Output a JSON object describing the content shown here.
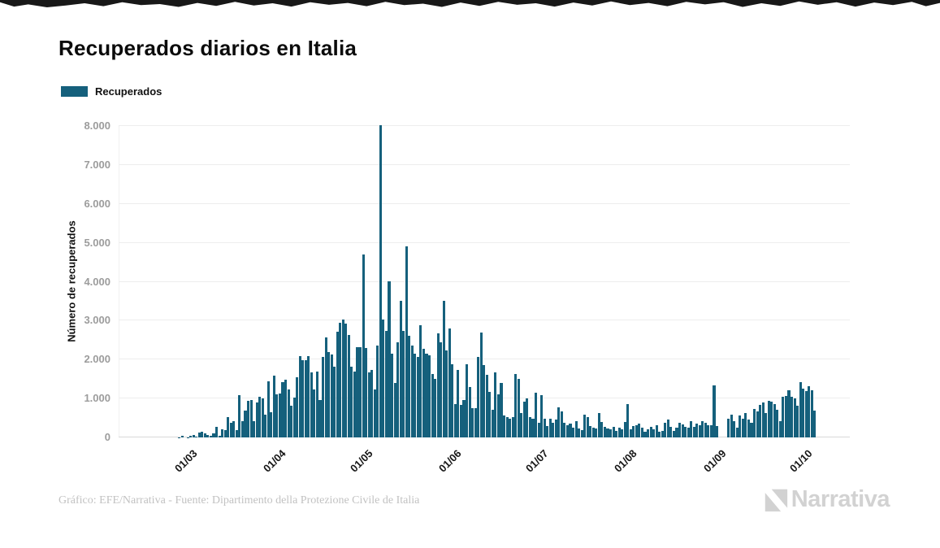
{
  "header": {
    "title": "Recuperados diarios en Italia"
  },
  "legend": {
    "label": "Recuperados",
    "swatch_color": "#15607c"
  },
  "footer": {
    "credit": "Gráfico: EFE/Narrativa - Fuente: Dipartimento della Protezione Civile de Italia",
    "brand": "Narrativa"
  },
  "colors": {
    "bar": "#15607c",
    "grid": "#ededed",
    "axis_labels": "#9c9c9c",
    "brand_gray": "#d2d2d2"
  },
  "chart_data": {
    "type": "bar",
    "title": "Recuperados diarios en Italia",
    "series_name": "Recuperados",
    "xlabel": "",
    "ylabel": "Número de recuperados",
    "ylim": [
      0,
      8000
    ],
    "grid": true,
    "legend_position": "top-left",
    "start_date": "26/02",
    "x_is_daily": true,
    "ytick_values": [
      0,
      1000,
      2000,
      3000,
      4000,
      5000,
      6000,
      7000,
      8000
    ],
    "ytick_labels": [
      "0",
      "1.000",
      "2.000",
      "3.000",
      "4.000",
      "5.000",
      "6.000",
      "7.000",
      "8.000"
    ],
    "xticks": [
      {
        "label": "01/03",
        "day_index": 4
      },
      {
        "label": "01/04",
        "day_index": 35
      },
      {
        "label": "01/05",
        "day_index": 65
      },
      {
        "label": "01/06",
        "day_index": 96
      },
      {
        "label": "01/07",
        "day_index": 126
      },
      {
        "label": "01/08",
        "day_index": 157
      },
      {
        "label": "01/09",
        "day_index": 188
      },
      {
        "label": "01/10",
        "day_index": 218
      }
    ],
    "values": [
      2,
      42,
      1,
      4,
      33,
      66,
      11,
      116,
      138,
      109,
      66,
      33,
      102,
      280,
      41,
      213,
      181,
      527,
      369,
      414,
      192,
      1084,
      415,
      689,
      943,
      952,
      408,
      894,
      1036,
      999,
      589,
      1434,
      646,
      1590,
      1109,
      1118,
      1431,
      1480,
      1238,
      819,
      1022,
      1555,
      2099,
      1979,
      1985,
      2079,
      1677,
      1224,
      1695,
      962,
      2072,
      2563,
      2200,
      2128,
      1822,
      2723,
      2943,
      3033,
      2922,
      2622,
      1808,
      1696,
      2317,
      2311,
      4693,
      2304,
      1665,
      1740,
      1225,
      2352,
      8014,
      3031,
      2747,
      4008,
      2155,
      1401,
      2452,
      3502,
      2747,
      4917,
      2605,
      2366,
      2150,
      2075,
      2881,
      2278,
      2160,
      2120,
      1639,
      1502,
      2677,
      2443,
      3503,
      2240,
      2789,
      1874,
      848,
      1737,
      846,
      957,
      1886,
      1297,
      759,
      747,
      2062,
      2692,
      1852,
      1608,
      1163,
      704,
      1667,
      1111,
      1408,
      556,
      519,
      482,
      519,
      1630,
      1505,
      630,
      926,
      1000,
      519,
      482,
      1148,
      370,
      1089,
      482,
      296,
      487,
      382,
      451,
      764,
      660,
      382,
      313,
      350,
      260,
      420,
      230,
      190,
      590,
      520,
      295,
      245,
      225,
      630,
      390,
      275,
      240,
      210,
      275,
      170,
      255,
      210,
      390,
      850,
      209,
      292,
      313,
      348,
      244,
      139,
      209,
      264,
      209,
      313,
      139,
      174,
      383,
      452,
      278,
      174,
      244,
      383,
      334,
      278,
      244,
      418,
      278,
      362,
      313,
      418,
      383,
      313,
      313,
      1337,
      292,
      0,
      0,
      0,
      487,
      590,
      418,
      243,
      556,
      490,
      627,
      450,
      382,
      731,
      660,
      835,
      904,
      627,
      940,
      926,
      852,
      704,
      408,
      1037,
      1074,
      1222,
      1037,
      1000,
      815,
      1422,
      1259,
      1185,
      1311,
      1222,
      695
    ]
  }
}
